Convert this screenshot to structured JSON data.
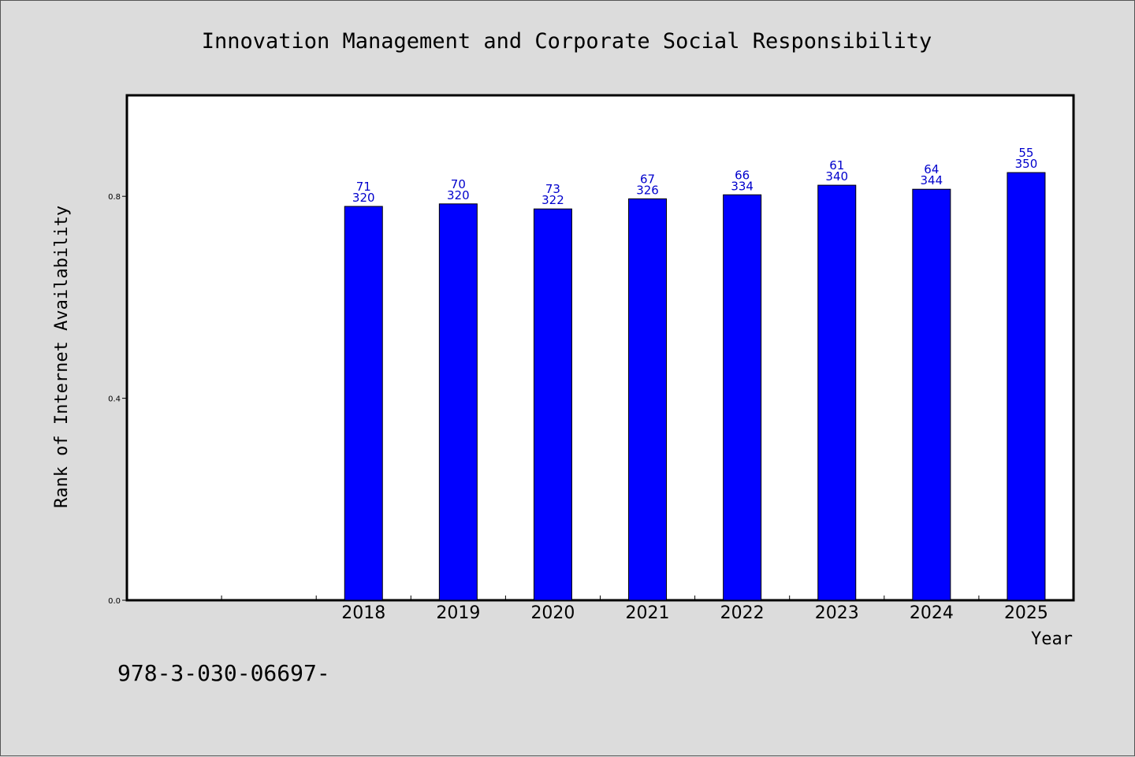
{
  "footer_text": "978-3-030-06697-",
  "colors": {
    "bar": "#0000ff",
    "data_label": "#0000cc",
    "background": "#dcdcdc",
    "plot_bg": "#ffffff"
  },
  "chart_data": {
    "type": "bar",
    "title": "Innovation Management and Corporate Social Responsibility",
    "xlabel": "Year",
    "ylabel": "Rank of Internet Availability",
    "categories": [
      "",
      "",
      "2018",
      "2019",
      "2020",
      "2021",
      "2022",
      "2023",
      "2024",
      "2025"
    ],
    "values": [
      null,
      null,
      0.78,
      0.785,
      0.775,
      0.795,
      0.803,
      0.822,
      0.814,
      0.847
    ],
    "labels_top": [
      "",
      "",
      "71",
      "70",
      "73",
      "67",
      "66",
      "61",
      "64",
      "55"
    ],
    "labels_bottom": [
      "",
      "",
      "320",
      "320",
      "322",
      "326",
      "334",
      "340",
      "344",
      "350"
    ],
    "ylim": [
      0,
      1.0
    ],
    "yticks": [
      0.0,
      0.4,
      0.8
    ],
    "ytick_labels": [
      "0.0",
      "0.4",
      "0.8"
    ],
    "grid": false,
    "legend": "none"
  }
}
